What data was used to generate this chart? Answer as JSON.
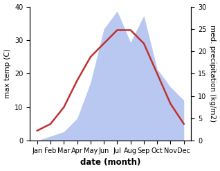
{
  "months": [
    "Jan",
    "Feb",
    "Mar",
    "Apr",
    "May",
    "Jun",
    "Jul",
    "Aug",
    "Sep",
    "Oct",
    "Nov",
    "Dec"
  ],
  "temp": [
    3,
    5,
    10,
    18,
    25,
    29,
    33,
    33,
    29,
    20,
    11,
    5
  ],
  "precip": [
    0,
    1,
    2,
    5,
    13,
    25,
    29,
    22,
    28,
    16,
    12,
    9
  ],
  "temp_color": "#c03030",
  "precip_fill_color": "#b8c8f0",
  "left_ylim": [
    0,
    40
  ],
  "right_ylim": [
    0,
    30
  ],
  "left_yticks": [
    0,
    10,
    20,
    30,
    40
  ],
  "right_yticks": [
    0,
    5,
    10,
    15,
    20,
    25,
    30
  ],
  "xlabel": "date (month)",
  "ylabel_left": "max temp (C)",
  "ylabel_right": "med. precipitation (kg/m2)",
  "background_color": "#ffffff",
  "plot_bg": "#ffffff"
}
